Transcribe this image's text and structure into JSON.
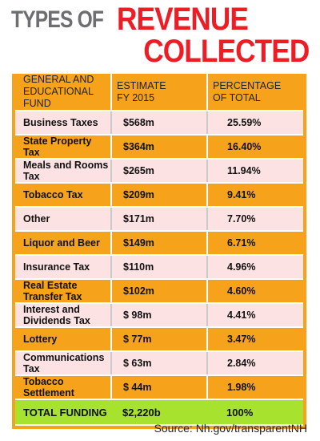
{
  "header": {
    "title_part1": "TYPES OF",
    "title_part2": "REVENUE",
    "title_part3": "COLLECTED"
  },
  "table": {
    "columns": [
      "GENERAL AND\nEDUCATIONAL FUND",
      "ESTIMATE\nFY 2015",
      "PERCENTAGE\nOF TOTAL"
    ],
    "rows": [
      [
        "Business Taxes",
        "$568m",
        "25.59%"
      ],
      [
        "State Property Tax",
        "$364m",
        "16.40%"
      ],
      [
        "Meals and Rooms Tax",
        "$265m",
        "11.94%"
      ],
      [
        "Tobacco Tax",
        "$209m",
        "9.41%"
      ],
      [
        "Other",
        "$171m",
        "7.70%"
      ],
      [
        "Liquor and Beer",
        "$149m",
        "6.71%"
      ],
      [
        "Insurance Tax",
        "$110m",
        "4.96%"
      ],
      [
        "Real Estate Transfer Tax",
        "$102m",
        "4.60%"
      ],
      [
        "Interest and Dividends Tax",
        "$ 98m",
        "4.41%"
      ],
      [
        "Lottery",
        "$ 77m",
        "3.47%"
      ],
      [
        "Communications Tax",
        "$ 63m",
        "2.84%"
      ],
      [
        "Tobacco Settlement",
        "$ 44m",
        "1.98%"
      ]
    ],
    "total": [
      "TOTAL FUNDING",
      "$2,220b",
      "100%"
    ]
  },
  "footer": {
    "source": "Source: Nh.gov/transparentNH"
  }
}
